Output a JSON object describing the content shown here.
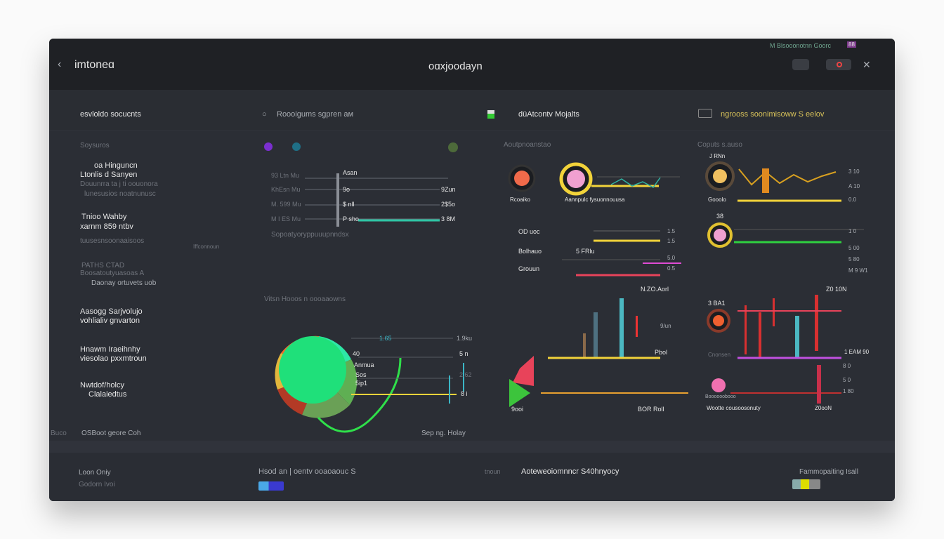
{
  "header": {
    "brand": "imtoneɑ",
    "title": "oɑхjoodayn",
    "status": "M Blsooonotnn Goorc",
    "badge": "88"
  },
  "subnav": [
    {
      "label": "esvloldo socucnts"
    },
    {
      "label": "Roooigums sgpren ам"
    },
    {
      "label": "düAtcontv Mojalts"
    },
    {
      "label": "ngrooss soonimisoww S eelov"
    }
  ],
  "sidebar": {
    "section": "Soysuros",
    "items": [
      {
        "line1": "oa Hinguncn",
        "line2": "Ltonlis d Sanyen",
        "sub1": "Douunrra ta j ti oouonora",
        "sub2": "lunesusios noatnunusc"
      },
      {
        "line1": "Tnioo Wahby",
        "line2": "xarnm 859 ntbv",
        "sub1": "tuusesnsoonaaisoos",
        "side": "Iffconnoun"
      },
      {
        "line1": "PATHS CTAD",
        "line2": "Boosatoutyuasoas A",
        "sub1": "Daonay ortuvets uob"
      },
      {
        "line1": "Aasogg Sarjvolujo",
        "line2": "vohlialiv gnvarton"
      },
      {
        "line1": "Hnawm Iraeihnhy",
        "line2": "viesolao pxxmtroun"
      },
      {
        "line1": "Nwtdof/holcy",
        "line2": "Clalaiedtus"
      }
    ],
    "footer_left": "Buco",
    "footer": "OSBoot geore Coh"
  },
  "panel1": {
    "rows": [
      {
        "l": "93 Ltn Mu",
        "m": "Asan",
        "r": ""
      },
      {
        "l": "KhEsn Mu",
        "m": "9o",
        "r": "9Zun"
      },
      {
        "l": "M. 599 Mu",
        "m": "$ nll",
        "r": "2$5o"
      },
      {
        "l": "M I ES Mu",
        "m": "P sho",
        "r": "3 8M"
      }
    ],
    "caption": "Sopoatyoryppuuupnndsx",
    "section2": "Vitsn Hooos n oooaaowns",
    "pie_labels": [
      "1.65",
      "40",
      "Anmua",
      "Sos",
      "5ip1"
    ],
    "pie_right": [
      "1.9ku",
      "5 n",
      "2.62",
      "8 i"
    ],
    "footer": "Sep ng. Holay",
    "accent": "#1fe07a"
  },
  "panel2": {
    "section": "Aoutpnoanstao",
    "labels": [
      "Rcoaiko",
      "Aannpulc fysuonnouusa",
      "OD uoc",
      "Bolhauo",
      "Grouun",
      "5 FRlu",
      "N.ZO.Aorl",
      "Pbol",
      "9ooi",
      "BOR Roll",
      "1.5",
      "1.5",
      "5.0",
      "0.5",
      "9/un"
    ]
  },
  "panel3": {
    "section": "Coputs s.auso",
    "labels": [
      "J RNn",
      "Gooolo",
      "3 10",
      "A 10",
      "0.0",
      "38",
      "1 0",
      "5 00",
      "5 80",
      "M 9 W1",
      "Z0 10N",
      "3 BA1",
      "Cnonsen",
      "1 EAM 90",
      "8 0",
      "5 0",
      "1 80",
      "Wootte cousoosonuty",
      "Z0ooN",
      "Boooooobooo"
    ]
  },
  "footer": {
    "left1": "Loon Oniy",
    "left2": "Godorn Ivoi",
    "mid": "Hsod an | oentv ooaoaouc S",
    "center_pre": "tnoun",
    "center": "Aoteweoiomnncr S40hnyocy",
    "right": "Fammopaiting Isall"
  },
  "colors": {
    "accent_yellow": "#f2d33a",
    "accent_red": "#e8435a",
    "accent_green": "#1fe07a",
    "accent_magenta": "#e04bd4",
    "accent_blue": "#3a46ff",
    "bg": "#2b2e35"
  }
}
